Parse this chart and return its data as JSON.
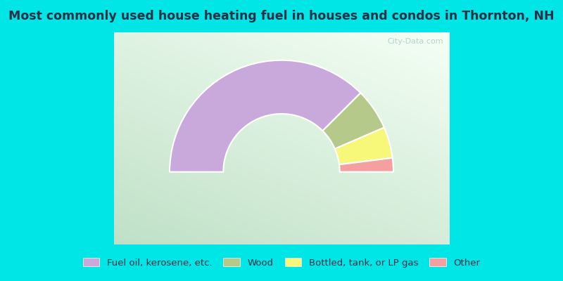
{
  "title": "Most commonly used house heating fuel in houses and condos in Thornton, NH",
  "title_color": "#2d3047",
  "title_fontsize": 12.5,
  "title_bar_color": "#00e5e5",
  "legend_bar_color": "#00e5e5",
  "chart_bg_colors": [
    "#b8ddb8",
    "#ddeedd",
    "#f0f8f4",
    "#e8f4f0",
    "#f8ffff"
  ],
  "segments": [
    {
      "label": "Fuel oil, kerosene, etc.",
      "value": 75.0,
      "color": "#c9a8dc"
    },
    {
      "label": "Wood",
      "value": 12.0,
      "color": "#b5c98a"
    },
    {
      "label": "Bottled, tank, or LP gas",
      "value": 9.0,
      "color": "#f7f77a"
    },
    {
      "label": "Other",
      "value": 4.0,
      "color": "#f4a0a0"
    }
  ],
  "outer_r": 1.0,
  "inner_r": 0.52,
  "legend_fontsize": 9.5,
  "watermark": "City-Data.com",
  "watermark_color": "#aacccc"
}
